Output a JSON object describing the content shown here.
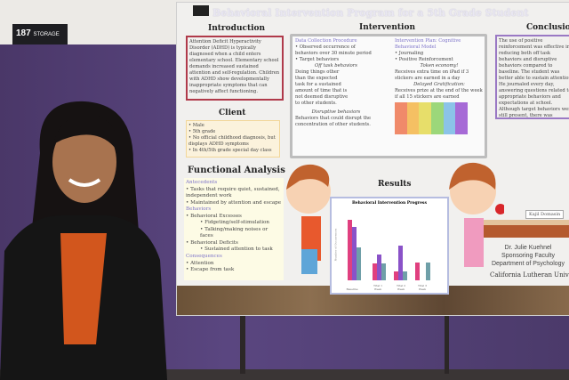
{
  "sign": {
    "number": "187",
    "label": "STORAGE"
  },
  "poster": {
    "title": "Behavioral Intervention Program for a 5th Grade Student",
    "introduction": {
      "heading": "Introduction",
      "text": "Attention Deficit Hyperactivity Disorder (ADHD) is typically diagnosed when a child enters elementary school. Elementary school demands increased sustained attention and self-regulation. Children with ADHD show developmentally inappropriate symptoms that can negatively affect functioning."
    },
    "intervention": {
      "heading": "Intervention",
      "data_collection": {
        "label": "Data Collection Procedure",
        "items": [
          "Observed occurrence of behaviors over 30 minute period",
          "Target behaviors"
        ],
        "sub": "Off task behaviors",
        "off_task_text": "Doing things other than the expected task for a sustained amount of time that is not deemed disruptive to other students.",
        "disruptive_label": "Disruptive behaviors",
        "disruptive_text": "Behaviors that could disrupt the concentration of other students."
      },
      "plan": {
        "label": "Intervention Plan: Cognitive Behavioral Model",
        "items": [
          "Journaling",
          "Positive Reinforcement"
        ],
        "token_label": "Token economy!",
        "token_text": "Receives extra time on iPad if 3 stickers are earned in a day",
        "delayed_label": "Delayed Gratification:",
        "delayed_text": "Receives prize at the end of the week if all 15 stickers are earned"
      }
    },
    "conclusion": {
      "heading": "Conclusion",
      "text": "The use of positive reinforcement was effective in reducing both off task behaviors and disruptive behaviors compared to baseline. The student was better able to sustain attention. He journaled every day, answering questions related to appropriate behaviors and expectations at school. Although target behaviors were still present, there was considerable reduction in the frequency of the behaviors during classroom tasks. Furthermore he stayed on task for longer than one minute, which equaled the number of times the student became off task."
    },
    "client": {
      "heading": "Client",
      "items": [
        "Male",
        "5th grade",
        "No official childhood diagnosis, but displays ADHD symptoms",
        "In 4th/5th grade special day class"
      ]
    },
    "functional_analysis": {
      "heading": "Functional Analysis",
      "antecedents_label": "Antecedents",
      "antecedents": [
        "Tasks that require quiet, sustained, independent work",
        "Maintained by attention and escape"
      ],
      "behaviors_label": "Behaviors",
      "excesses": "Behavioral Excesses",
      "excess_items": [
        "Fidgeting/self-stimulation",
        "Talking/making noises or faces"
      ],
      "deficits": "Behavioral Deficits",
      "deficit_items": [
        "Sustained attention to task"
      ],
      "consequences_label": "Consequences",
      "consequences": [
        "Attention",
        "Escape from task"
      ]
    },
    "results": {
      "heading": "Results",
      "chart_title": "Behavioral Intervention Progress",
      "ylabel": "Number of Occurrences",
      "categories": [
        "Baseline",
        "Trial 1 Week",
        "Trial 2 Week",
        "Trial 3 Week"
      ],
      "colors": [
        "#e0407f",
        "#8a52c8",
        "#6f9fa8"
      ]
    },
    "name_tag": "Kajil Domasin",
    "credit": [
      "Dr. Julie Kuehnel",
      "Sponsoring Faculty",
      "Department of Psychology"
    ],
    "university": "California Lutheran University"
  }
}
